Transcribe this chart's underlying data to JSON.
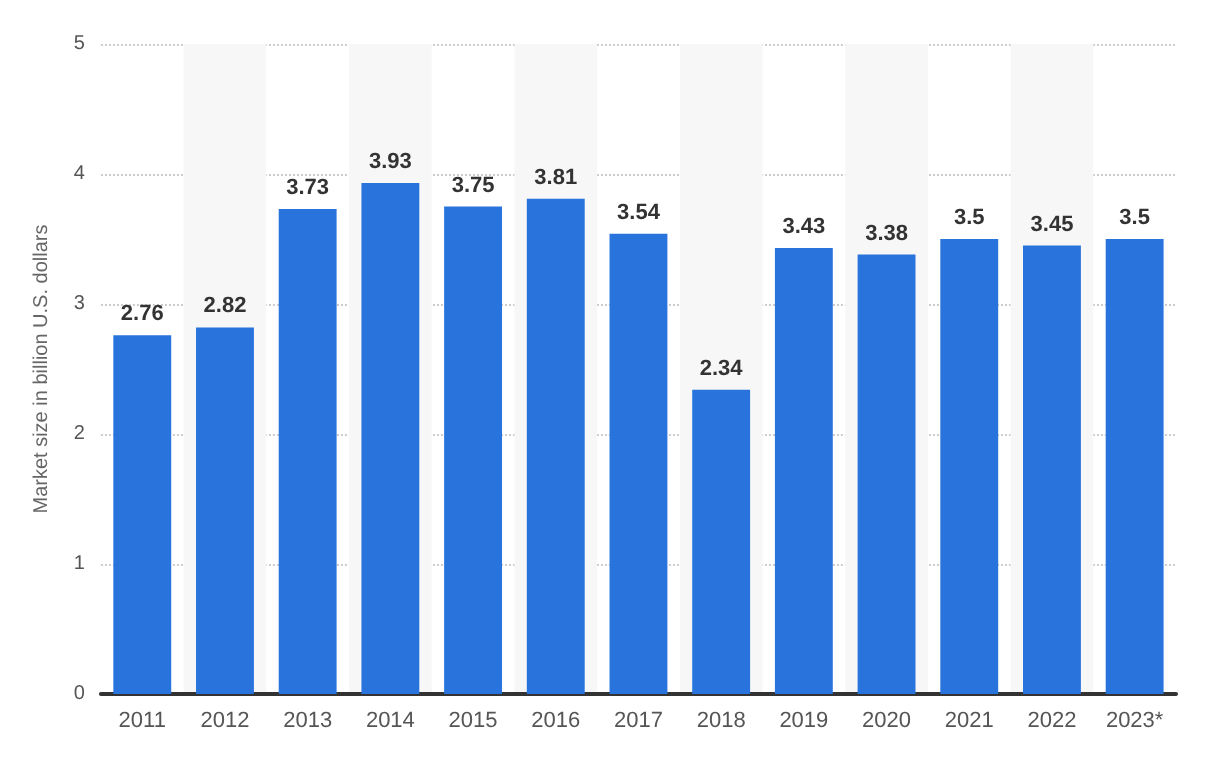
{
  "chart_data": {
    "type": "bar",
    "ylabel": "Market size in billion U.S. dollars",
    "categories": [
      "2011",
      "2012",
      "2013",
      "2014",
      "2015",
      "2016",
      "2017",
      "2018",
      "2019",
      "2020",
      "2021",
      "2022",
      "2023*"
    ],
    "values": [
      2.76,
      2.82,
      3.73,
      3.93,
      3.75,
      3.81,
      3.54,
      2.34,
      3.43,
      3.38,
      3.5,
      3.45,
      3.5
    ],
    "color": "#2873dc",
    "ylim": [
      0,
      5
    ],
    "yticks": [
      0,
      1,
      2,
      3,
      4,
      5
    ],
    "grid": "y",
    "data_labels": true
  }
}
